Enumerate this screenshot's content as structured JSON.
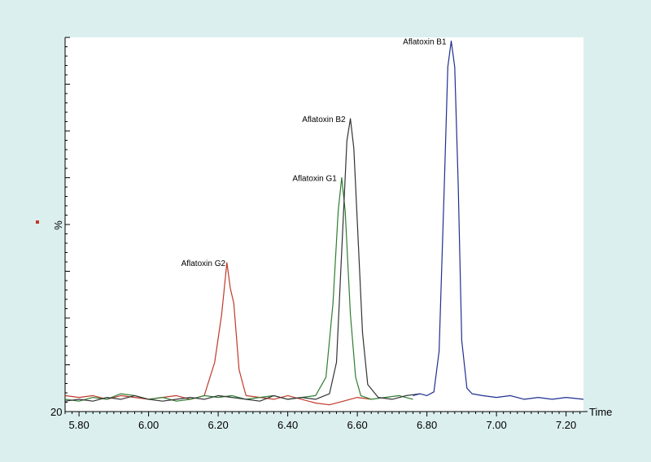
{
  "chart_data": {
    "type": "line",
    "xlabel": "Time",
    "ylabel": "%",
    "y_min_label": "20",
    "xlim": [
      5.76,
      7.25
    ],
    "ylim": [
      0,
      100
    ],
    "x_ticks": [
      "5.80",
      "6.00",
      "6.20",
      "6.40",
      "6.60",
      "6.80",
      "7.00",
      "7.20"
    ],
    "x_tick_values": [
      5.8,
      6.0,
      6.2,
      6.4,
      6.6,
      6.8,
      7.0,
      7.2
    ],
    "grid": false,
    "legend": "none",
    "series": [
      {
        "color": "#c0392b",
        "x": [
          5.76,
          5.8,
          5.84,
          5.88,
          5.92,
          5.96,
          6.0,
          6.04,
          6.08,
          6.12,
          6.16,
          6.19,
          6.21,
          6.225,
          6.235,
          6.245,
          6.26,
          6.28,
          6.32,
          6.36,
          6.4,
          6.44,
          6.48,
          6.52,
          6.56,
          6.6,
          6.64
        ],
        "y": [
          3,
          2.5,
          3,
          2,
          3,
          2.5,
          2,
          2.5,
          3,
          2,
          3,
          12,
          25,
          39,
          32,
          28,
          10,
          3,
          2.5,
          2,
          3,
          2,
          1,
          0.5,
          1.5,
          2.5,
          2
        ]
      },
      {
        "color": "#2e7d32",
        "x": [
          5.76,
          5.8,
          5.84,
          5.88,
          5.92,
          5.96,
          6.0,
          6.04,
          6.08,
          6.12,
          6.16,
          6.2,
          6.24,
          6.28,
          6.32,
          6.36,
          6.4,
          6.44,
          6.48,
          6.51,
          6.53,
          6.545,
          6.555,
          6.565,
          6.58,
          6.595,
          6.61,
          6.64,
          6.68,
          6.72,
          6.76
        ],
        "y": [
          2,
          1.5,
          2.5,
          2,
          3.5,
          3,
          2,
          2.5,
          1.5,
          2,
          3,
          2.5,
          3,
          2,
          2.5,
          3,
          2,
          2.5,
          3,
          8,
          28,
          53,
          62,
          53,
          25,
          8,
          3,
          2,
          2.5,
          3,
          2
        ]
      },
      {
        "color": "#333333",
        "x": [
          5.76,
          5.8,
          5.84,
          5.88,
          5.92,
          5.96,
          6.0,
          6.04,
          6.08,
          6.12,
          6.16,
          6.2,
          6.24,
          6.28,
          6.32,
          6.36,
          6.4,
          6.44,
          6.48,
          6.52,
          6.54,
          6.555,
          6.57,
          6.58,
          6.59,
          6.6,
          6.615,
          6.63,
          6.66,
          6.7,
          6.74,
          6.78
        ],
        "y": [
          1.5,
          2,
          1.5,
          2.5,
          2,
          3,
          2,
          1.5,
          2,
          2.5,
          2,
          3,
          2.5,
          2,
          1.5,
          3,
          2,
          2.5,
          2,
          3.5,
          12,
          42,
          72,
          78,
          70,
          50,
          20,
          6,
          2.5,
          2,
          3,
          3.5
        ]
      },
      {
        "color": "#1f2f8f",
        "x": [
          6.76,
          6.78,
          6.8,
          6.82,
          6.835,
          6.85,
          6.86,
          6.87,
          6.88,
          6.89,
          6.9,
          6.915,
          6.93,
          6.96,
          7.0,
          7.04,
          7.08,
          7.12,
          7.16,
          7.2,
          7.25
        ],
        "y": [
          3,
          3.5,
          3,
          4,
          15,
          60,
          92,
          99,
          92,
          60,
          18,
          5,
          3.5,
          3,
          2.5,
          3,
          2,
          2.5,
          2,
          2.5,
          2
        ]
      }
    ],
    "annotations": [
      {
        "text": "Aflatoxin G2",
        "x": 6.235,
        "y": 39
      },
      {
        "text": "Aflatoxin G1",
        "x": 6.555,
        "y": 62
      },
      {
        "text": "Aflatoxin B2",
        "x": 6.58,
        "y": 78
      },
      {
        "text": "Aflatoxin B1",
        "x": 6.87,
        "y": 99
      }
    ]
  },
  "marker_color": "#c0392b"
}
